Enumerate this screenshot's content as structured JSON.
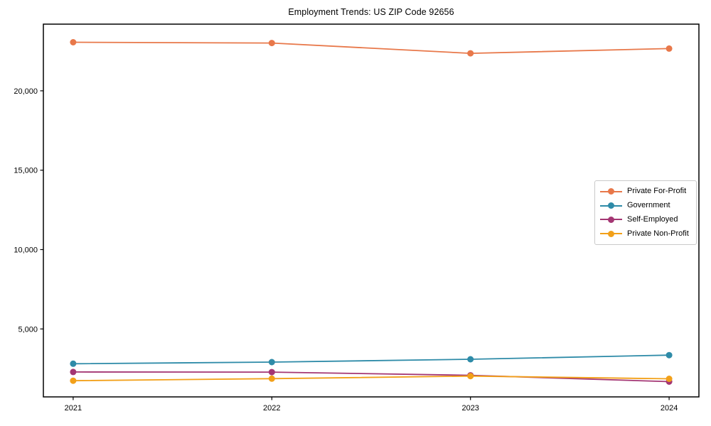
{
  "chart_data": {
    "type": "line",
    "title": "Employment Trends: US ZIP Code 92656",
    "x": [
      2021,
      2022,
      2023,
      2024
    ],
    "x_tick_labels": [
      "2021",
      "2022",
      "2023",
      "2024"
    ],
    "y_ticks": [
      5000,
      10000,
      15000,
      20000
    ],
    "y_tick_labels": [
      "5,000",
      "10,000",
      "15,000",
      "20,000"
    ],
    "xlim": [
      2020.85,
      2024.15
    ],
    "ylim": [
      720,
      24200
    ],
    "grid": false,
    "legend_position": "center-right",
    "axis_color": "#000000",
    "background": "#ffffff",
    "series": [
      {
        "name": "Private For-Profit",
        "color": "#E8784A",
        "values": [
          23060,
          23010,
          22360,
          22660
        ]
      },
      {
        "name": "Government",
        "color": "#2E8BA8",
        "values": [
          2810,
          2910,
          3090,
          3350
        ]
      },
      {
        "name": "Self-Employed",
        "color": "#A43673",
        "values": [
          2290,
          2280,
          2080,
          1680
        ]
      },
      {
        "name": "Private Non-Profit",
        "color": "#F2A019",
        "values": [
          1740,
          1870,
          2030,
          1860
        ]
      }
    ]
  }
}
